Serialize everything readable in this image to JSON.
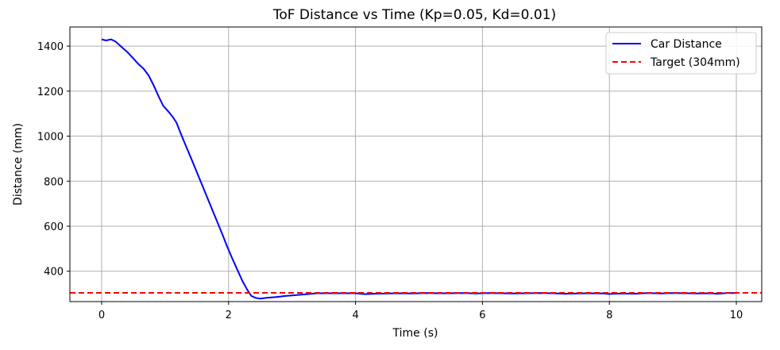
{
  "chart_data": {
    "type": "line",
    "title": "ToF Distance vs Time (Kp=0.05, Kd=0.01)",
    "xlabel": "Time (s)",
    "ylabel": "Distance (mm)",
    "xlim": [
      -0.5,
      10.4
    ],
    "ylim": [
      265,
      1485
    ],
    "xticks": [
      0,
      2,
      4,
      6,
      8,
      10
    ],
    "yticks": [
      400,
      600,
      800,
      1000,
      1200,
      1400
    ],
    "grid": true,
    "legend_position": "top-right",
    "series": [
      {
        "name": "Car Distance",
        "color": "#0000ff",
        "style": "solid",
        "x": [
          0,
          0.07,
          0.15,
          0.22,
          0.3,
          0.4,
          0.5,
          0.58,
          0.66,
          0.74,
          0.82,
          0.9,
          0.97,
          1.05,
          1.12,
          1.18,
          1.25,
          1.33,
          1.42,
          1.5,
          1.58,
          1.66,
          1.74,
          1.82,
          1.9,
          1.98,
          2.06,
          2.14,
          2.22,
          2.3,
          2.36,
          2.42,
          2.5,
          2.6,
          2.75,
          2.9,
          3.0,
          3.2,
          3.4,
          3.6,
          3.8,
          4.0,
          4.15,
          4.3,
          4.5,
          4.7,
          4.9,
          5.1,
          5.3,
          5.5,
          5.7,
          5.9,
          6.1,
          6.3,
          6.5,
          6.7,
          6.9,
          7.1,
          7.3,
          7.5,
          7.7,
          7.9,
          8.0,
          8.2,
          8.4,
          8.6,
          8.8,
          9.0,
          9.2,
          9.4,
          9.6,
          9.7,
          9.85,
          10.0
        ],
        "y": [
          1430,
          1425,
          1430,
          1420,
          1400,
          1375,
          1345,
          1320,
          1300,
          1270,
          1225,
          1175,
          1135,
          1110,
          1085,
          1060,
          1010,
          955,
          895,
          840,
          785,
          730,
          675,
          620,
          565,
          508,
          455,
          405,
          355,
          315,
          290,
          282,
          278,
          282,
          285,
          290,
          292,
          297,
          302,
          302,
          302,
          302,
          298,
          300,
          301,
          302,
          301,
          303,
          302,
          302,
          303,
          301,
          303,
          302,
          301,
          302,
          303,
          302,
          300,
          301,
          302,
          301,
          299,
          301,
          300,
          303,
          301,
          303,
          302,
          301,
          302,
          300,
          303,
          303
        ]
      },
      {
        "name": "Target (304mm)",
        "color": "#ff0000",
        "style": "dashed",
        "y_constant": 304
      }
    ]
  }
}
